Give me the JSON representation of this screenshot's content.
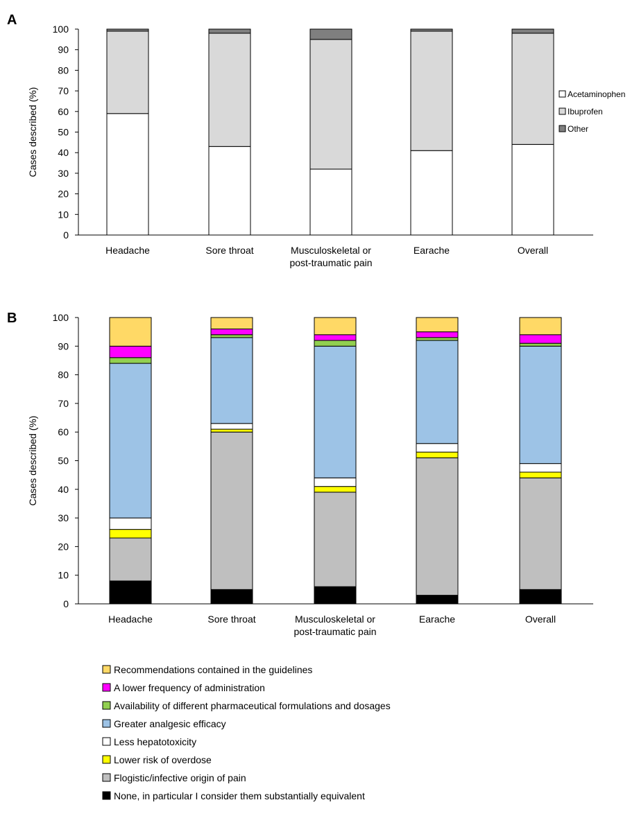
{
  "figure": {
    "panels": [
      "A",
      "B"
    ]
  },
  "chart_data": [
    {
      "panel": "A",
      "type": "bar",
      "stacked": true,
      "title": "",
      "xlabel": "",
      "ylabel": "Cases described (%)",
      "ylim": [
        0,
        100
      ],
      "yticks": [
        0,
        10,
        20,
        30,
        40,
        50,
        60,
        70,
        80,
        90,
        100
      ],
      "grid": false,
      "legend_position": "right",
      "categories": [
        [
          "Headache"
        ],
        [
          "Sore throat"
        ],
        [
          "Musculoskeletal or",
          "post-traumatic pain"
        ],
        [
          "Earache"
        ],
        [
          "Overall"
        ]
      ],
      "series": [
        {
          "name": "Acetaminophen",
          "color": "#ffffff",
          "values": [
            59,
            43,
            32,
            41,
            44
          ]
        },
        {
          "name": "Ibuprofen",
          "color": "#d9d9d9",
          "values": [
            40,
            55,
            63,
            58,
            54
          ]
        },
        {
          "name": "Other",
          "color": "#7f7f7f",
          "values": [
            1,
            2,
            5,
            1,
            2
          ]
        }
      ]
    },
    {
      "panel": "B",
      "type": "bar",
      "stacked": true,
      "title": "",
      "xlabel": "",
      "ylabel": "Cases described (%)",
      "ylim": [
        0,
        100
      ],
      "yticks": [
        0,
        10,
        20,
        30,
        40,
        50,
        60,
        70,
        80,
        90,
        100
      ],
      "grid": false,
      "legend_position": "bottom",
      "categories": [
        [
          "Headache"
        ],
        [
          "Sore throat"
        ],
        [
          "Musculoskeletal or",
          "post-traumatic pain"
        ],
        [
          "Earache"
        ],
        [
          "Overall"
        ]
      ],
      "series": [
        {
          "name": "None, in particular I consider them substantially equivalent",
          "color": "#000000",
          "values": [
            8,
            5,
            6,
            3,
            5
          ]
        },
        {
          "name": "Flogistic/infective origin of pain",
          "color": "#bfbfbf",
          "values": [
            15,
            55,
            33,
            48,
            39
          ]
        },
        {
          "name": "Lower risk of overdose",
          "color": "#ffff00",
          "values": [
            3,
            1,
            2,
            2,
            2
          ]
        },
        {
          "name": "Less hepatotoxicity",
          "color": "#ffffff",
          "values": [
            4,
            2,
            3,
            3,
            3
          ]
        },
        {
          "name": "Greater analgesic efficacy",
          "color": "#9dc3e6",
          "values": [
            54,
            30,
            46,
            36,
            41
          ]
        },
        {
          "name": "Availability of different pharmaceutical formulations and dosages",
          "color": "#92d050",
          "values": [
            2,
            1,
            2,
            1,
            1
          ]
        },
        {
          "name": "A lower frequency of administration",
          "color": "#ff00ff",
          "values": [
            4,
            2,
            2,
            2,
            3
          ]
        },
        {
          "name": "Recommendations contained in the guidelines",
          "color": "#ffd966",
          "values": [
            10,
            4,
            6,
            5,
            6
          ]
        }
      ]
    }
  ]
}
